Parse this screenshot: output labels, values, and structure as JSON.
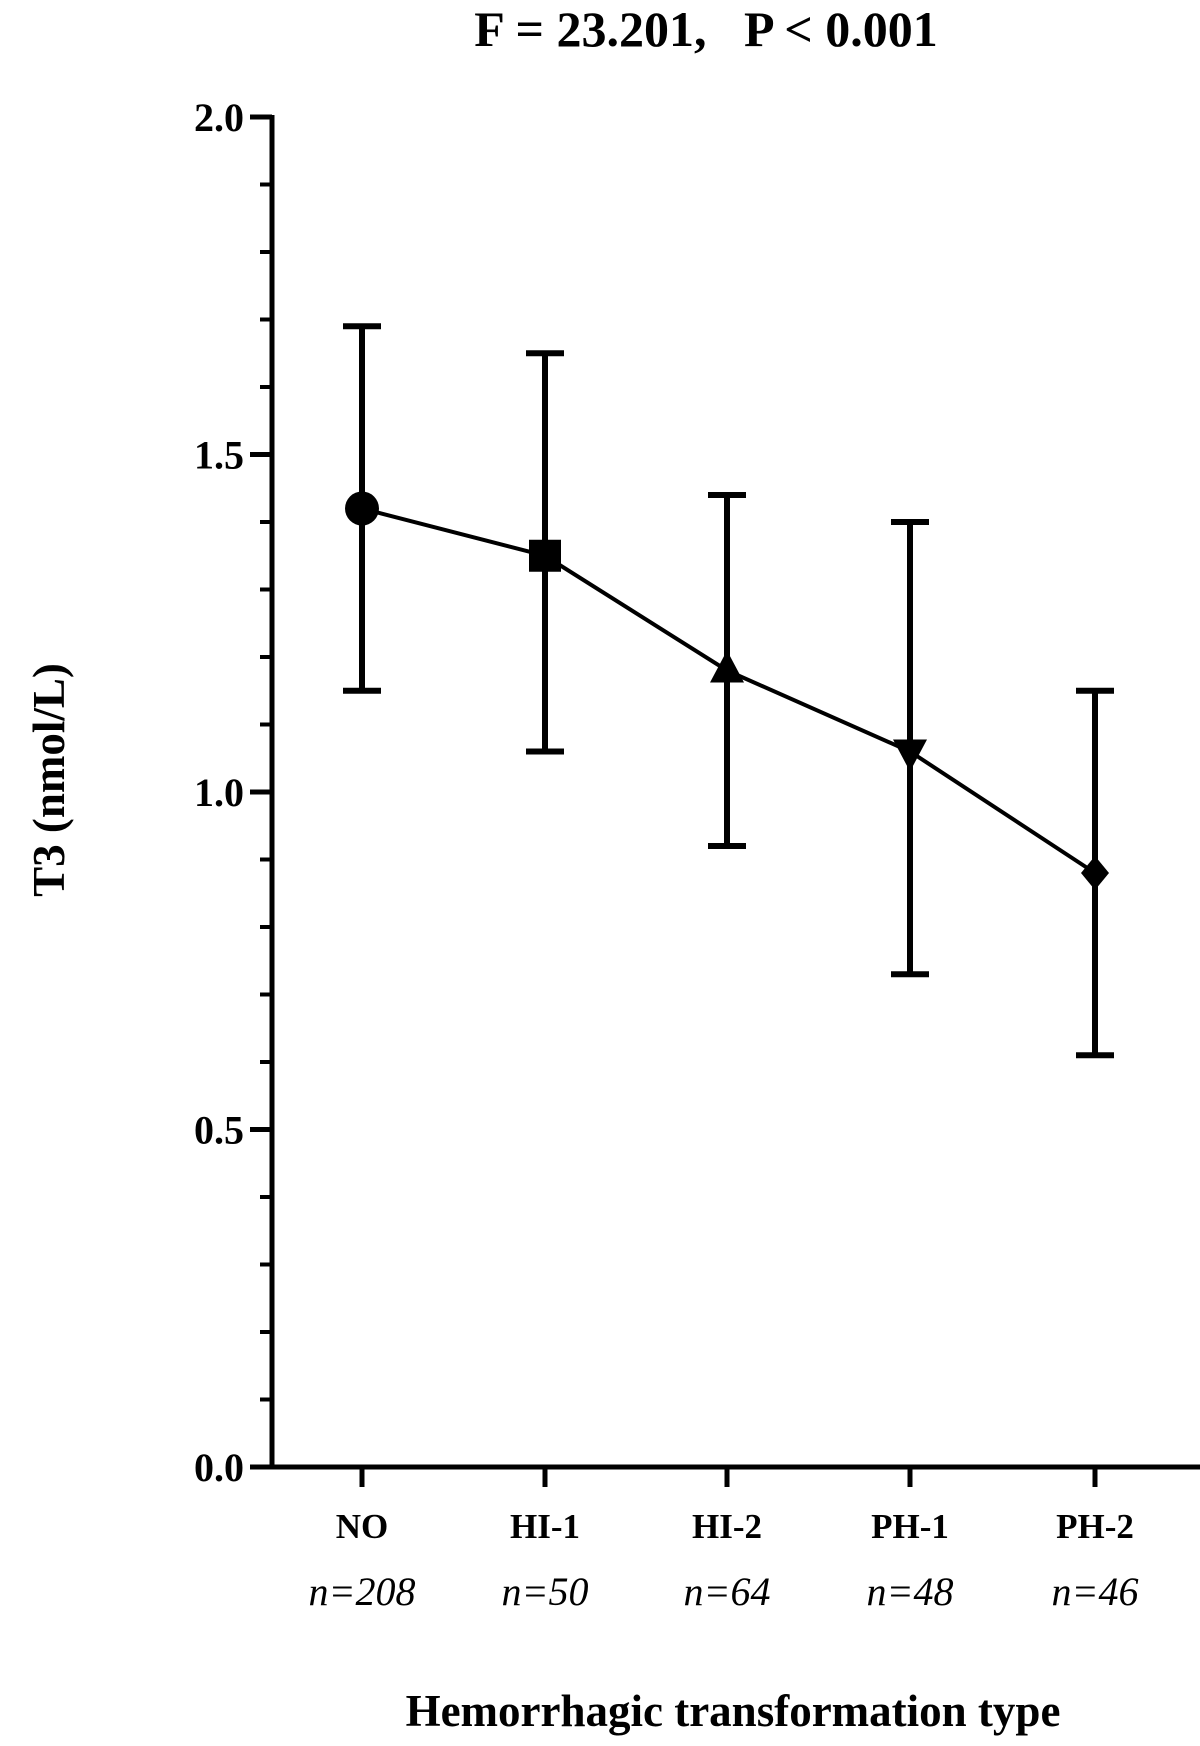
{
  "chart_data": {
    "type": "line",
    "title": "F = 23.201,   P < 0.001",
    "xlabel": "Hemorrhagic transformation type",
    "ylabel": "T3 (nmol/L)",
    "ylim": [
      0,
      2.0
    ],
    "y_ticks": [
      "0.0",
      "0.5",
      "1.0",
      "1.5",
      "2.0"
    ],
    "categories": [
      "NO",
      "HI-1",
      "HI-2",
      "PH-1",
      "PH-2"
    ],
    "sample_sizes": [
      "n=208",
      "n=50",
      "n=64",
      "n=48",
      "n=46"
    ],
    "series": [
      {
        "values": [
          1.42,
          1.35,
          1.18,
          1.06,
          0.88
        ],
        "error_low": [
          1.15,
          1.06,
          0.92,
          0.73,
          0.61
        ],
        "error_high": [
          1.69,
          1.65,
          1.44,
          1.4,
          1.15
        ],
        "markers": [
          "circle",
          "square",
          "triangle-up",
          "triangle-down",
          "diamond"
        ]
      }
    ],
    "grid": false,
    "legend": "none"
  }
}
